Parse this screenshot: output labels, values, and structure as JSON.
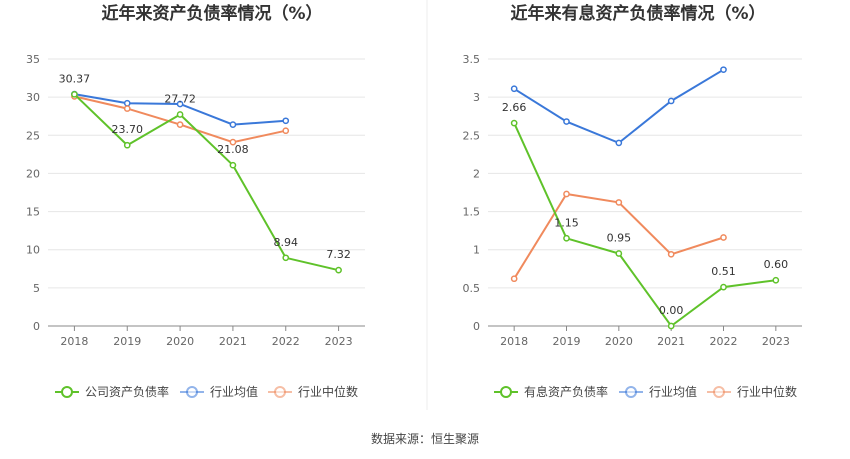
{
  "chart_data": [
    {
      "type": "line",
      "title": "近年来资产负债率情况（%）",
      "categories": [
        "2018",
        "2019",
        "2020",
        "2021",
        "2022",
        "2023"
      ],
      "ylim": [
        0,
        35
      ],
      "yticks": [
        0,
        5,
        10,
        15,
        20,
        25,
        30,
        35
      ],
      "grid": true,
      "legend": "bottom",
      "series": [
        {
          "name": "公司资产负债率",
          "color": "#5fc22a",
          "values": [
            30.37,
            23.7,
            27.72,
            21.08,
            8.94,
            7.32
          ],
          "labels": [
            "30.37",
            "23.70",
            "27.72",
            "21.08",
            "8.94",
            "7.32"
          ]
        },
        {
          "name": "行业均值",
          "color": "#3a78d9",
          "values": [
            30.4,
            29.2,
            29.1,
            26.4,
            26.9,
            null
          ]
        },
        {
          "name": "行业中位数",
          "color": "#f08a5d",
          "values": [
            30.1,
            28.5,
            26.4,
            24.1,
            25.6,
            null
          ]
        }
      ]
    },
    {
      "type": "line",
      "title": "近年来有息资产负债率情况（%）",
      "categories": [
        "2018",
        "2019",
        "2020",
        "2021",
        "2022",
        "2023"
      ],
      "ylim": [
        0,
        3.5
      ],
      "yticks": [
        0,
        0.5,
        1,
        1.5,
        2,
        2.5,
        3,
        3.5
      ],
      "grid": true,
      "legend": "bottom",
      "series": [
        {
          "name": "有息资产负债率",
          "color": "#5fc22a",
          "values": [
            2.66,
            1.15,
            0.95,
            0.0,
            0.51,
            0.6
          ],
          "labels": [
            "2.66",
            "1.15",
            "0.95",
            "0.00",
            "0.51",
            "0.60"
          ]
        },
        {
          "name": "行业均值",
          "color": "#3a78d9",
          "values": [
            3.11,
            2.68,
            2.4,
            2.95,
            3.36,
            null
          ]
        },
        {
          "name": "行业中位数",
          "color": "#f08a5d",
          "values": [
            0.62,
            1.73,
            1.62,
            0.94,
            1.16,
            null
          ]
        }
      ]
    }
  ],
  "footer": {
    "source": "数据来源：恒生聚源"
  }
}
